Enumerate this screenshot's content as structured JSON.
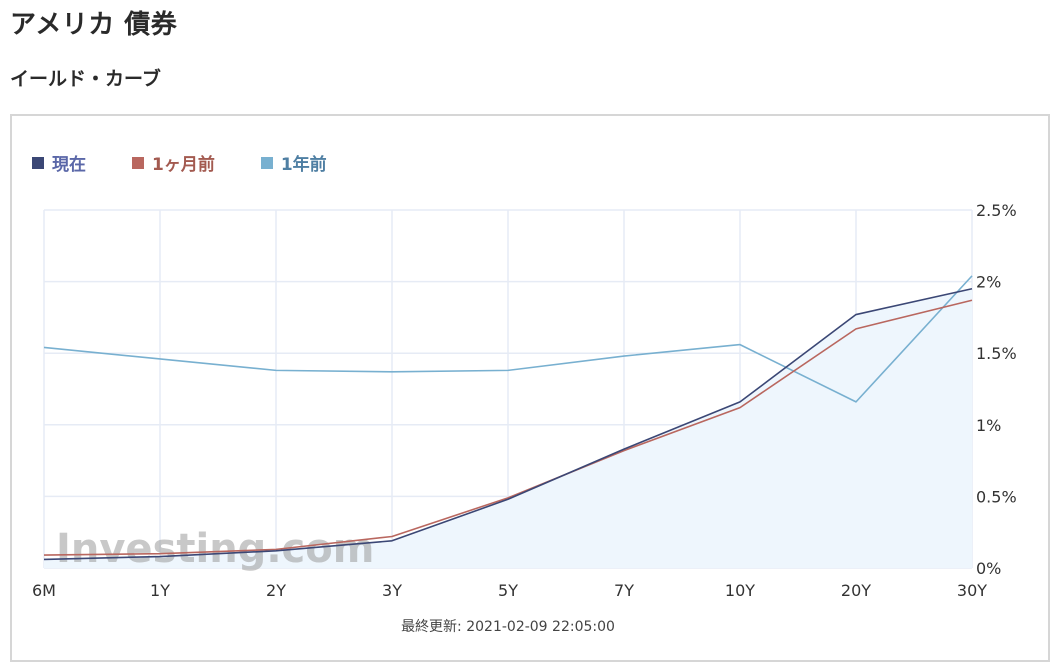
{
  "page": {
    "title": "アメリカ 債券",
    "section_title": "イールド・カーブ",
    "updated": "最終更新: 2021-02-09 22:05:00",
    "watermark": "Investing.com"
  },
  "colors": {
    "current": "#3b4775",
    "month_ago": "#b9675f",
    "year_ago": "#78b0d0",
    "area_fill": "#eef6fd",
    "grid": "#e6ebf5"
  },
  "chart_data": {
    "type": "line",
    "categories": [
      "6M",
      "1Y",
      "2Y",
      "3Y",
      "5Y",
      "7Y",
      "10Y",
      "20Y",
      "30Y"
    ],
    "series": [
      {
        "name": "現在",
        "values": [
          0.06,
          0.08,
          0.12,
          0.19,
          0.48,
          0.83,
          1.16,
          1.77,
          1.95
        ]
      },
      {
        "name": "1ヶ月前",
        "values": [
          0.09,
          0.1,
          0.13,
          0.22,
          0.49,
          0.82,
          1.12,
          1.67,
          1.87
        ]
      },
      {
        "name": "1年前",
        "values": [
          1.54,
          1.46,
          1.38,
          1.37,
          1.38,
          1.48,
          1.56,
          1.16,
          2.04
        ]
      }
    ],
    "yticks": [
      "0%",
      "0.5%",
      "1%",
      "1.5%",
      "2%",
      "2.5%"
    ],
    "ylim": [
      0,
      2.5
    ],
    "grid": true,
    "legend_position": "top-left",
    "area_series": "現在"
  }
}
